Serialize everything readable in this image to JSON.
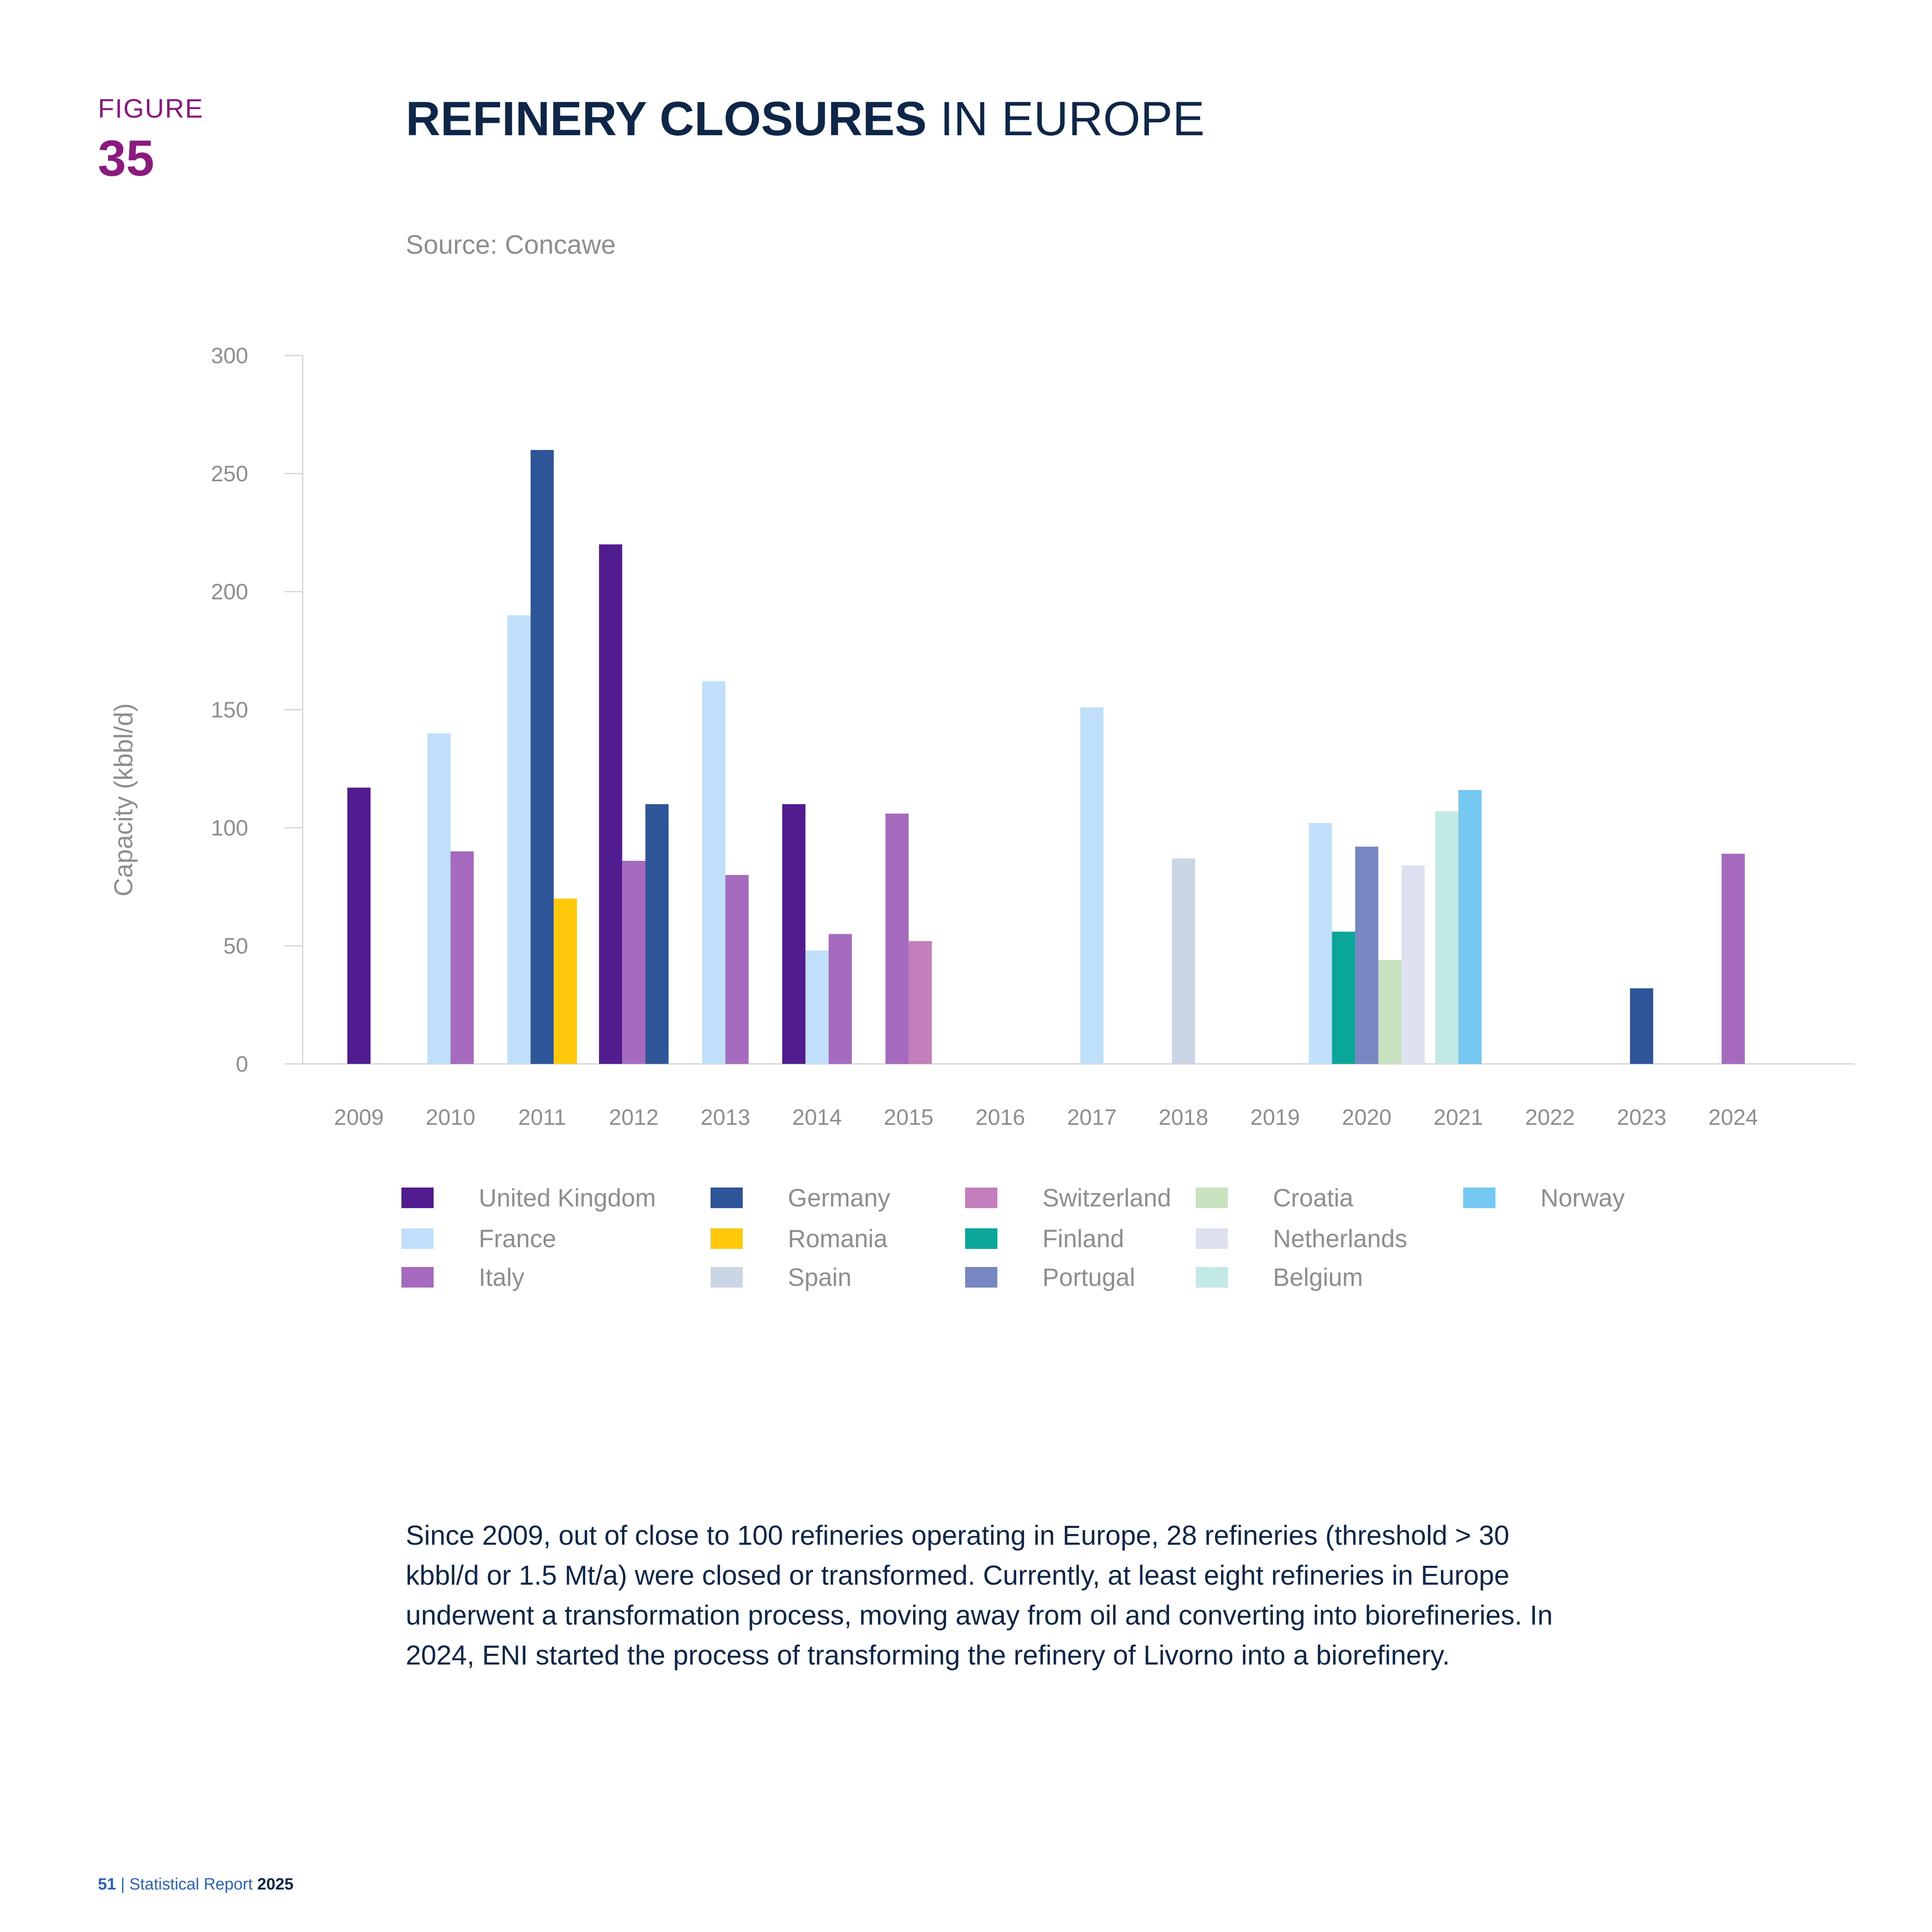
{
  "figure": {
    "label": "FIGURE",
    "number": "35"
  },
  "title": {
    "bold": "REFINERY CLOSURES",
    "light": " IN EUROPE"
  },
  "source": "Source: Concawe",
  "chart_data": {
    "type": "bar",
    "ylabel": "Capacity (kbbl/d)",
    "ylim": [
      0,
      300
    ],
    "yticks": [
      0,
      50,
      100,
      150,
      200,
      250,
      300
    ],
    "categories": [
      "2009",
      "2010",
      "2011",
      "2012",
      "2013",
      "2014",
      "2015",
      "2016",
      "2017",
      "2018",
      "2019",
      "2020",
      "2021",
      "2022",
      "2023",
      "2024"
    ],
    "legend_position": "bottom",
    "series": [
      {
        "name": "United Kingdom",
        "color": "#511c8f"
      },
      {
        "name": "France",
        "color": "#bfdffb"
      },
      {
        "name": "Italy",
        "color": "#a56abd"
      },
      {
        "name": "Germany",
        "color": "#2d5597"
      },
      {
        "name": "Romania",
        "color": "#ffc80a"
      },
      {
        "name": "Spain",
        "color": "#cbd6e4"
      },
      {
        "name": "Switzerland",
        "color": "#c37fbb"
      },
      {
        "name": "Finland",
        "color": "#0aa699"
      },
      {
        "name": "Portugal",
        "color": "#7886c1"
      },
      {
        "name": "Croatia",
        "color": "#c8e2c0"
      },
      {
        "name": "Netherlands",
        "color": "#dde1f0"
      },
      {
        "name": "Belgium",
        "color": "#c2e9e6"
      },
      {
        "name": "Norway",
        "color": "#74c8f2"
      }
    ],
    "bars": [
      {
        "year": "2009",
        "items": [
          {
            "series": "United Kingdom",
            "value": 117
          }
        ]
      },
      {
        "year": "2010",
        "items": [
          {
            "series": "France",
            "value": 140
          },
          {
            "series": "Italy",
            "value": 90
          }
        ]
      },
      {
        "year": "2011",
        "items": [
          {
            "series": "France",
            "value": 190
          },
          {
            "series": "Germany",
            "value": 260
          },
          {
            "series": "Romania",
            "value": 70
          }
        ]
      },
      {
        "year": "2012",
        "items": [
          {
            "series": "United Kingdom",
            "value": 220
          },
          {
            "series": "Italy",
            "value": 86
          },
          {
            "series": "Germany",
            "value": 110
          }
        ]
      },
      {
        "year": "2013",
        "items": [
          {
            "series": "France",
            "value": 162
          },
          {
            "series": "Italy",
            "value": 80
          }
        ]
      },
      {
        "year": "2014",
        "items": [
          {
            "series": "United Kingdom",
            "value": 110
          },
          {
            "series": "France",
            "value": 48
          },
          {
            "series": "Italy",
            "value": 55
          }
        ]
      },
      {
        "year": "2015",
        "items": [
          {
            "series": "Italy",
            "value": 106
          },
          {
            "series": "Switzerland",
            "value": 52
          }
        ]
      },
      {
        "year": "2016",
        "items": []
      },
      {
        "year": "2017",
        "items": [
          {
            "series": "France",
            "value": 151
          }
        ]
      },
      {
        "year": "2018",
        "items": [
          {
            "series": "Spain",
            "value": 87
          }
        ]
      },
      {
        "year": "2019",
        "items": []
      },
      {
        "year": "2020",
        "items": [
          {
            "series": "France",
            "value": 102
          },
          {
            "series": "Finland",
            "value": 56
          },
          {
            "series": "Portugal",
            "value": 92
          },
          {
            "series": "Croatia",
            "value": 44
          },
          {
            "series": "Netherlands",
            "value": 84
          }
        ]
      },
      {
        "year": "2021",
        "items": [
          {
            "series": "Belgium",
            "value": 107
          },
          {
            "series": "Norway",
            "value": 116
          }
        ]
      },
      {
        "year": "2022",
        "items": []
      },
      {
        "year": "2023",
        "items": [
          {
            "series": "Germany",
            "value": 32
          }
        ]
      },
      {
        "year": "2024",
        "items": [
          {
            "series": "Italy",
            "value": 89
          }
        ]
      }
    ]
  },
  "legend": [
    {
      "name": "United Kingdom",
      "color": "#511c8f"
    },
    {
      "name": "Germany",
      "color": "#2d5597"
    },
    {
      "name": "Switzerland",
      "color": "#c37fbb"
    },
    {
      "name": "Croatia",
      "color": "#c8e2c0"
    },
    {
      "name": "Norway",
      "color": "#74c8f2"
    },
    {
      "name": "France",
      "color": "#bfdffb"
    },
    {
      "name": "Romania",
      "color": "#ffc80a"
    },
    {
      "name": "Finland",
      "color": "#0aa699"
    },
    {
      "name": "Netherlands",
      "color": "#dde1f0"
    },
    {
      "name": "Italy",
      "color": "#a56abd"
    },
    {
      "name": "Spain",
      "color": "#cbd6e4"
    },
    {
      "name": "Portugal",
      "color": "#7886c1"
    },
    {
      "name": "Belgium",
      "color": "#c2e9e6"
    }
  ],
  "body_text": "Since 2009, out of close to 100 refineries operating in Europe, 28 refineries (threshold > 30 kbbl/d or 1.5 Mt/a) were closed or transformed. Currently, at least eight refineries in Europe underwent a transformation process, moving away from oil and converting into biorefineries. In 2024, ENI started the process of transforming the refinery of Livorno into a biorefinery.",
  "footer": {
    "page": "51",
    "separator": " | ",
    "report": "Statistical Report ",
    "year": "2025"
  }
}
